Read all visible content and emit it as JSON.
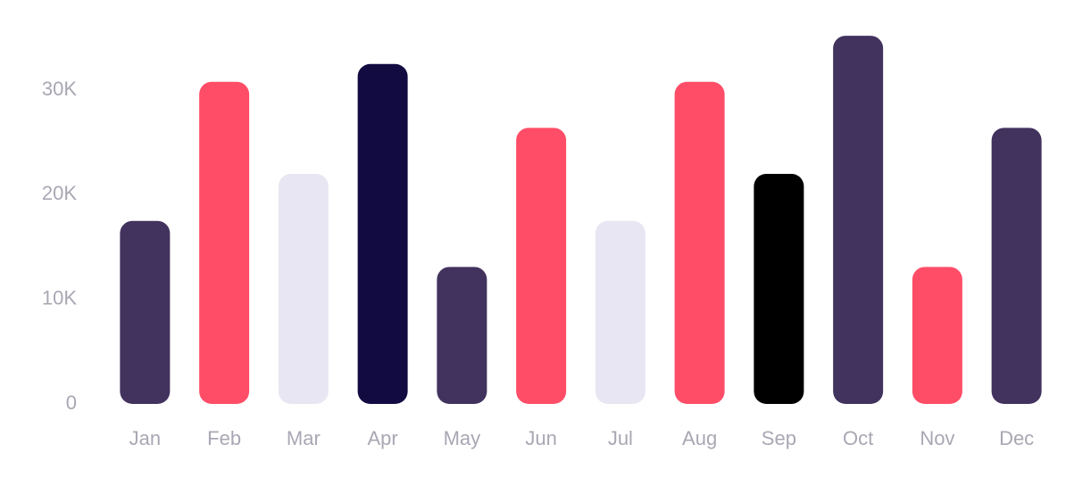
{
  "chart_data": {
    "type": "bar",
    "title": "",
    "xlabel": "",
    "ylabel": "",
    "ylim": [
      0,
      35000
    ],
    "yticks": [
      {
        "value": 0,
        "label": "0"
      },
      {
        "value": 10000,
        "label": "10K"
      },
      {
        "value": 20000,
        "label": "20K"
      },
      {
        "value": 30000,
        "label": "30K"
      }
    ],
    "grid": false,
    "legend": "none",
    "categories": [
      "Jan",
      "Feb",
      "Mar",
      "Apr",
      "May",
      "Jun",
      "Jul",
      "Aug",
      "Sep",
      "Oct",
      "Nov",
      "Dec"
    ],
    "values": [
      17500,
      30800,
      22000,
      32500,
      13100,
      26400,
      17500,
      30800,
      22000,
      35200,
      13100,
      26400
    ],
    "colors": [
      "#42325e",
      "#ff4d68",
      "#e8e6f2",
      "#120b42",
      "#42325e",
      "#ff4d68",
      "#e8e6f2",
      "#ff4d68",
      "#000000",
      "#42325e",
      "#ff4d68",
      "#42325e"
    ]
  }
}
